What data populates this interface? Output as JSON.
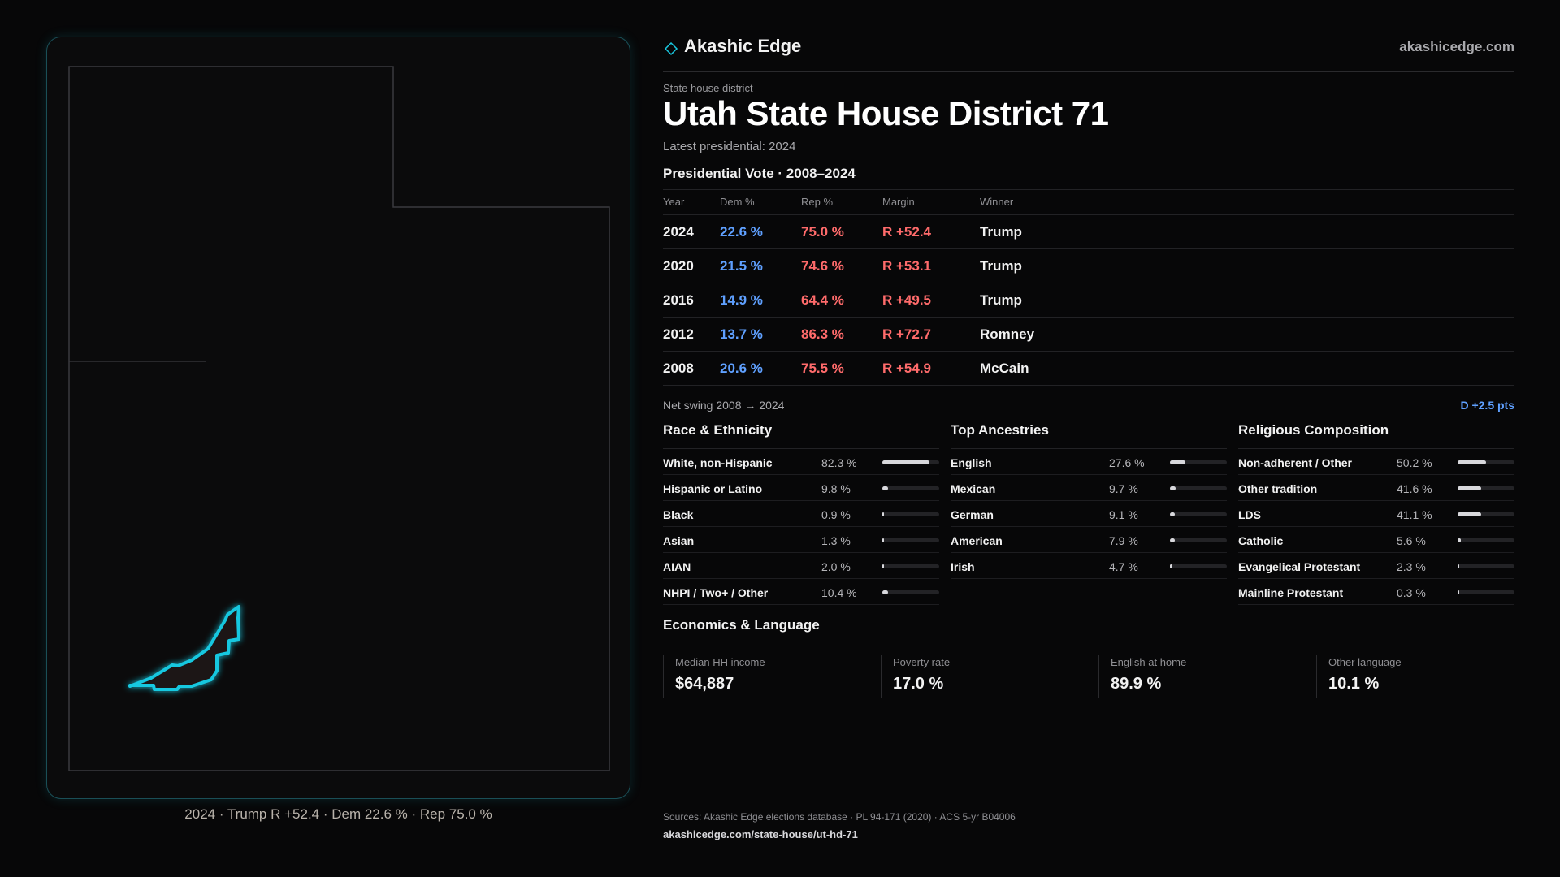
{
  "brand": {
    "name": "Akashic Edge",
    "url": "akashicedge.com"
  },
  "district": {
    "type_label": "State house district",
    "title": "Utah State House District 71",
    "latest": "Latest presidential: 2024"
  },
  "vote": {
    "heading": "Presidential Vote · 2008–2024",
    "columns": {
      "year": "Year",
      "dem": "Dem %",
      "rep": "Rep %",
      "margin": "Margin",
      "winner": "Winner"
    },
    "rows": [
      {
        "year": "2024",
        "dem": "22.6 %",
        "rep": "75.0 %",
        "margin": "R +52.4",
        "winner": "Trump"
      },
      {
        "year": "2020",
        "dem": "21.5 %",
        "rep": "74.6 %",
        "margin": "R +53.1",
        "winner": "Trump"
      },
      {
        "year": "2016",
        "dem": "14.9 %",
        "rep": "64.4 %",
        "margin": "R +49.5",
        "winner": "Trump"
      },
      {
        "year": "2012",
        "dem": "13.7 %",
        "rep": "86.3 %",
        "margin": "R +72.7",
        "winner": "Romney"
      },
      {
        "year": "2008",
        "dem": "20.6 %",
        "rep": "75.5 %",
        "margin": "R +54.9",
        "winner": "McCain"
      }
    ],
    "swing_label": "Net swing 2008 → 2024",
    "swing_value": "D +2.5 pts"
  },
  "race": {
    "title": "Race & Ethnicity",
    "items": [
      {
        "label": "White, non-Hispanic",
        "value": "82.3 %",
        "fraction": 0.823
      },
      {
        "label": "Hispanic or Latino",
        "value": "9.8 %",
        "fraction": 0.098
      },
      {
        "label": "Black",
        "value": "0.9 %",
        "fraction": 0.009
      },
      {
        "label": "Asian",
        "value": "1.3 %",
        "fraction": 0.013
      },
      {
        "label": "AIAN",
        "value": "2.0 %",
        "fraction": 0.02
      },
      {
        "label": "NHPI / Two+ / Other",
        "value": "10.4 %",
        "fraction": 0.104
      }
    ]
  },
  "ancestry": {
    "title": "Top Ancestries",
    "items": [
      {
        "label": "English",
        "value": "27.6 %",
        "fraction": 0.276
      },
      {
        "label": "Mexican",
        "value": "9.7 %",
        "fraction": 0.097
      },
      {
        "label": "German",
        "value": "9.1 %",
        "fraction": 0.091
      },
      {
        "label": "American",
        "value": "7.9 %",
        "fraction": 0.079
      },
      {
        "label": "Irish",
        "value": "4.7 %",
        "fraction": 0.047
      }
    ]
  },
  "religion": {
    "title": "Religious Composition",
    "items": [
      {
        "label": "Non-adherent / Other",
        "value": "50.2 %",
        "fraction": 0.502
      },
      {
        "label": "Other tradition",
        "value": "41.6 %",
        "fraction": 0.416
      },
      {
        "label": "LDS",
        "value": "41.1 %",
        "fraction": 0.411
      },
      {
        "label": "Catholic",
        "value": "5.6 %",
        "fraction": 0.056
      },
      {
        "label": "Evangelical Protestant",
        "value": "2.3 %",
        "fraction": 0.023
      },
      {
        "label": "Mainline Protestant",
        "value": "0.3 %",
        "fraction": 0.003
      }
    ]
  },
  "economics": {
    "title": "Economics & Language",
    "cells": [
      {
        "label": "Median HH income",
        "value": "$64,887"
      },
      {
        "label": "Poverty rate",
        "value": "17.0 %"
      },
      {
        "label": "English at home",
        "value": "89.9 %"
      },
      {
        "label": "Other language",
        "value": "10.1 %"
      }
    ]
  },
  "map": {
    "caption": "2024 · Trump R +52.4 · Dem 22.6 % · Rep 75.0 %",
    "highlight_color": "#19c8e0"
  },
  "sources": {
    "line": "Sources: Akashic Edge elections database · PL 94-171 (2020) · ACS 5-yr B04006",
    "url": "akashicedge.com/state-house/ut-hd-71"
  },
  "colors": {
    "dem": "#5fa0ff",
    "rep": "#ff6b6b",
    "accent": "#19c8e0",
    "background": "#070708"
  }
}
